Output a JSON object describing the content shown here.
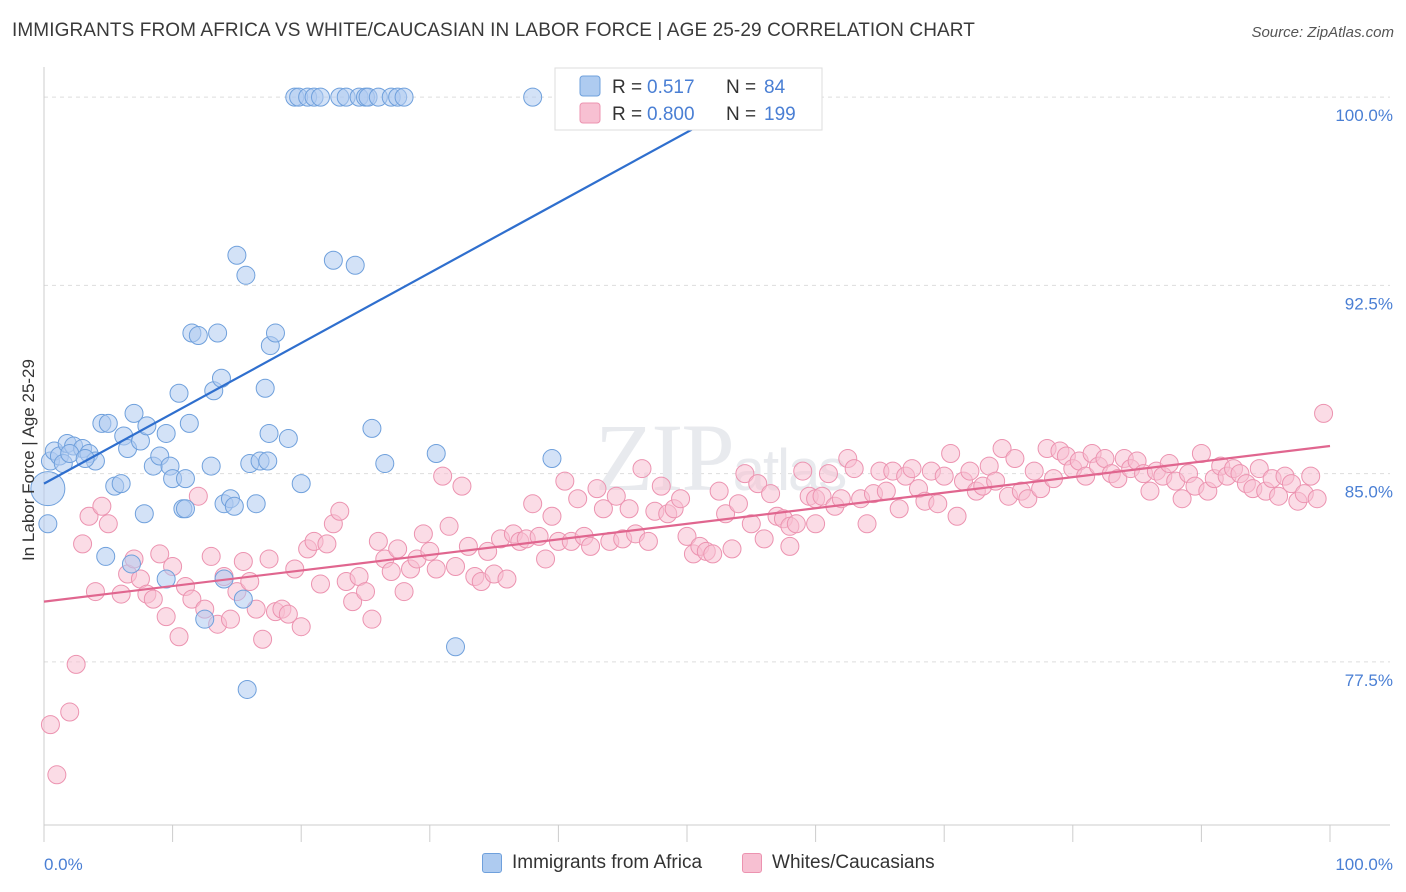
{
  "title": "IMMIGRANTS FROM AFRICA VS WHITE/CAUCASIAN IN LABOR FORCE | AGE 25-29 CORRELATION CHART",
  "source": "Source: ZipAtlas.com",
  "watermark": "ZIPatlas",
  "colors": {
    "blue_fill": "#aecbf0",
    "blue_stroke": "#6fa0dc",
    "blue_line": "#2f6fce",
    "pink_fill": "#f7c0d2",
    "pink_stroke": "#ec93b0",
    "pink_line": "#e0668f",
    "axis_text": "#4a7fd4",
    "grid": "#dddddd"
  },
  "legend_box": {
    "rows": [
      {
        "r_label": "R =",
        "r_value": "0.517",
        "n_label": "N =",
        "n_value": "84"
      },
      {
        "r_label": "R =",
        "r_value": "0.800",
        "n_label": "N =",
        "n_value": "199"
      }
    ]
  },
  "legend_bottom": [
    "Immigrants from Africa",
    "Whites/Caucasians"
  ],
  "chart_data": {
    "type": "scatter",
    "title": "IMMIGRANTS FROM AFRICA VS WHITE/CAUCASIAN IN LABOR FORCE | AGE 25-29 CORRELATION CHART",
    "xlabel": "",
    "ylabel": "In Labor Force | Age 25-29",
    "xlim": [
      0,
      100
    ],
    "ylim": [
      71,
      101
    ],
    "x_tick_labels": [
      "0.0%",
      "100.0%"
    ],
    "y_ticks": [
      77.5,
      85.0,
      92.5,
      100.0
    ],
    "y_tick_labels": [
      "77.5%",
      "85.0%",
      "92.5%",
      "100.0%"
    ],
    "grid": true,
    "legend_position": "top-center",
    "series": [
      {
        "name": "Immigrants from Africa",
        "R": 0.517,
        "N": 84,
        "trend": {
          "x": [
            0,
            55
          ],
          "y": [
            84.6,
            100.0
          ]
        },
        "points": [
          [
            0.3,
            84.4
          ],
          [
            0.3,
            83.0
          ],
          [
            0.5,
            85.5
          ],
          [
            0.8,
            85.9
          ],
          [
            1.2,
            85.7
          ],
          [
            1.5,
            85.4
          ],
          [
            1.8,
            86.2
          ],
          [
            2.3,
            86.1
          ],
          [
            3.0,
            86.0
          ],
          [
            3.5,
            85.8
          ],
          [
            4.0,
            85.5
          ],
          [
            4.5,
            87.0
          ],
          [
            5.0,
            87.0
          ],
          [
            5.5,
            84.5
          ],
          [
            6.0,
            84.6
          ],
          [
            6.2,
            86.5
          ],
          [
            6.5,
            86.0
          ],
          [
            7.0,
            87.4
          ],
          [
            7.5,
            86.3
          ],
          [
            7.8,
            83.4
          ],
          [
            8.0,
            86.9
          ],
          [
            8.5,
            85.3
          ],
          [
            9.0,
            85.7
          ],
          [
            9.5,
            86.6
          ],
          [
            9.8,
            85.3
          ],
          [
            10.0,
            84.8
          ],
          [
            10.5,
            88.2
          ],
          [
            10.8,
            83.6
          ],
          [
            11.0,
            84.8
          ],
          [
            11.3,
            87.0
          ],
          [
            11.5,
            90.6
          ],
          [
            12.0,
            90.5
          ],
          [
            12.5,
            79.2
          ],
          [
            13.0,
            85.3
          ],
          [
            13.2,
            88.3
          ],
          [
            13.5,
            90.6
          ],
          [
            13.8,
            88.8
          ],
          [
            14.0,
            83.8
          ],
          [
            14.5,
            84.0
          ],
          [
            14.8,
            83.7
          ],
          [
            15.0,
            93.7
          ],
          [
            15.5,
            80.0
          ],
          [
            15.7,
            92.9
          ],
          [
            15.8,
            76.4
          ],
          [
            16.0,
            85.4
          ],
          [
            16.5,
            83.8
          ],
          [
            16.8,
            85.5
          ],
          [
            17.2,
            88.4
          ],
          [
            17.4,
            85.5
          ],
          [
            17.5,
            86.6
          ],
          [
            17.6,
            90.1
          ],
          [
            18.0,
            90.6
          ],
          [
            19.0,
            86.4
          ],
          [
            19.5,
            100.0
          ],
          [
            19.8,
            100.0
          ],
          [
            20.0,
            84.6
          ],
          [
            20.5,
            100.0
          ],
          [
            21.0,
            100.0
          ],
          [
            21.5,
            100.0
          ],
          [
            22.5,
            93.5
          ],
          [
            23.0,
            100.0
          ],
          [
            23.5,
            100.0
          ],
          [
            24.2,
            93.3
          ],
          [
            24.5,
            100.0
          ],
          [
            25.0,
            100.0
          ],
          [
            25.2,
            100.0
          ],
          [
            25.5,
            86.8
          ],
          [
            26.0,
            100.0
          ],
          [
            26.5,
            85.4
          ],
          [
            27.0,
            100.0
          ],
          [
            27.5,
            100.0
          ],
          [
            28.0,
            100.0
          ],
          [
            30.5,
            85.8
          ],
          [
            32.0,
            78.1
          ],
          [
            38.0,
            100.0
          ],
          [
            39.5,
            85.6
          ],
          [
            41.0,
            100.0
          ],
          [
            4.8,
            81.7
          ],
          [
            6.8,
            81.4
          ],
          [
            9.5,
            80.8
          ],
          [
            11.0,
            83.6
          ],
          [
            14.0,
            80.8
          ],
          [
            2.0,
            85.8
          ],
          [
            3.2,
            85.6
          ]
        ],
        "sizes": {
          "0.3,84.4": 34,
          "0.3,83.0": 40
        }
      },
      {
        "name": "Whites/Caucasians",
        "R": 0.8,
        "N": 199,
        "trend": {
          "x": [
            0,
            100
          ],
          "y": [
            79.9,
            86.1
          ]
        },
        "points": [
          [
            0.5,
            75.0
          ],
          [
            1.0,
            73.0
          ],
          [
            2.0,
            75.5
          ],
          [
            2.5,
            77.4
          ],
          [
            3.0,
            82.2
          ],
          [
            3.5,
            83.3
          ],
          [
            4.0,
            80.3
          ],
          [
            4.5,
            83.7
          ],
          [
            5.0,
            83.0
          ],
          [
            6.0,
            80.2
          ],
          [
            6.5,
            81.0
          ],
          [
            7.0,
            81.6
          ],
          [
            7.5,
            80.8
          ],
          [
            8.0,
            80.2
          ],
          [
            8.5,
            80.0
          ],
          [
            9.0,
            81.8
          ],
          [
            9.5,
            79.3
          ],
          [
            10.0,
            81.3
          ],
          [
            10.5,
            78.5
          ],
          [
            11.0,
            80.5
          ],
          [
            11.5,
            80.0
          ],
          [
            12.0,
            84.1
          ],
          [
            12.5,
            79.6
          ],
          [
            13.0,
            81.7
          ],
          [
            13.5,
            79.0
          ],
          [
            14.0,
            80.9
          ],
          [
            14.5,
            79.2
          ],
          [
            15.0,
            80.3
          ],
          [
            15.5,
            81.5
          ],
          [
            16.0,
            80.7
          ],
          [
            16.5,
            79.6
          ],
          [
            17.0,
            78.4
          ],
          [
            17.5,
            81.6
          ],
          [
            18.0,
            79.5
          ],
          [
            18.5,
            79.6
          ],
          [
            19.0,
            79.4
          ],
          [
            19.5,
            81.2
          ],
          [
            20.0,
            78.9
          ],
          [
            20.5,
            82.0
          ],
          [
            21.0,
            82.3
          ],
          [
            21.5,
            80.6
          ],
          [
            22.0,
            82.2
          ],
          [
            22.5,
            83.0
          ],
          [
            23.0,
            83.5
          ],
          [
            23.5,
            80.7
          ],
          [
            24.0,
            79.9
          ],
          [
            24.5,
            80.9
          ],
          [
            25.0,
            80.3
          ],
          [
            25.5,
            79.2
          ],
          [
            26.0,
            82.3
          ],
          [
            26.5,
            81.6
          ],
          [
            27.0,
            81.1
          ],
          [
            27.5,
            82.0
          ],
          [
            28.0,
            80.3
          ],
          [
            28.5,
            81.2
          ],
          [
            29.0,
            81.6
          ],
          [
            29.5,
            82.6
          ],
          [
            30.0,
            81.9
          ],
          [
            30.5,
            81.2
          ],
          [
            31.0,
            84.9
          ],
          [
            31.5,
            82.9
          ],
          [
            32.0,
            81.3
          ],
          [
            32.5,
            84.5
          ],
          [
            33.0,
            82.1
          ],
          [
            33.5,
            80.9
          ],
          [
            34.0,
            80.7
          ],
          [
            34.5,
            81.9
          ],
          [
            35.0,
            81.0
          ],
          [
            35.5,
            82.4
          ],
          [
            36.0,
            80.8
          ],
          [
            36.5,
            82.6
          ],
          [
            37.0,
            82.3
          ],
          [
            37.5,
            82.4
          ],
          [
            38.0,
            83.8
          ],
          [
            38.5,
            82.5
          ],
          [
            39.0,
            81.6
          ],
          [
            39.5,
            83.3
          ],
          [
            40.0,
            82.3
          ],
          [
            40.5,
            84.7
          ],
          [
            41.0,
            82.3
          ],
          [
            41.5,
            84.0
          ],
          [
            42.0,
            82.5
          ],
          [
            42.5,
            82.1
          ],
          [
            43.0,
            84.4
          ],
          [
            43.5,
            83.6
          ],
          [
            44.0,
            82.3
          ],
          [
            44.5,
            84.1
          ],
          [
            45.0,
            82.4
          ],
          [
            45.5,
            83.6
          ],
          [
            46.0,
            82.6
          ],
          [
            46.5,
            85.2
          ],
          [
            47.0,
            82.3
          ],
          [
            47.5,
            83.5
          ],
          [
            48.0,
            84.5
          ],
          [
            48.5,
            83.4
          ],
          [
            49.0,
            83.6
          ],
          [
            49.5,
            84.0
          ],
          [
            50.0,
            82.5
          ],
          [
            50.5,
            81.8
          ],
          [
            51.0,
            82.1
          ],
          [
            51.5,
            81.9
          ],
          [
            52.0,
            81.8
          ],
          [
            52.5,
            84.3
          ],
          [
            53.0,
            83.4
          ],
          [
            53.5,
            82.0
          ],
          [
            54.0,
            83.8
          ],
          [
            54.5,
            85.0
          ],
          [
            55.0,
            83.0
          ],
          [
            55.5,
            84.6
          ],
          [
            56.0,
            82.4
          ],
          [
            56.5,
            84.2
          ],
          [
            57.0,
            83.3
          ],
          [
            57.5,
            83.2
          ],
          [
            58.0,
            82.9
          ],
          [
            58.5,
            83.0
          ],
          [
            59.0,
            85.1
          ],
          [
            59.5,
            84.1
          ],
          [
            60.0,
            84.0
          ],
          [
            60.5,
            84.1
          ],
          [
            61.0,
            85.0
          ],
          [
            61.5,
            83.7
          ],
          [
            62.0,
            84.0
          ],
          [
            62.5,
            85.6
          ],
          [
            63.0,
            85.2
          ],
          [
            63.5,
            84.0
          ],
          [
            64.0,
            83.0
          ],
          [
            64.5,
            84.2
          ],
          [
            65.0,
            85.1
          ],
          [
            65.5,
            84.3
          ],
          [
            66.0,
            85.1
          ],
          [
            66.5,
            83.6
          ],
          [
            67.0,
            84.9
          ],
          [
            67.5,
            85.2
          ],
          [
            68.0,
            84.4
          ],
          [
            68.5,
            83.9
          ],
          [
            69.0,
            85.1
          ],
          [
            69.5,
            83.8
          ],
          [
            70.0,
            84.9
          ],
          [
            70.5,
            85.8
          ],
          [
            71.0,
            83.3
          ],
          [
            71.5,
            84.7
          ],
          [
            72.0,
            85.1
          ],
          [
            72.5,
            84.3
          ],
          [
            73.0,
            84.5
          ],
          [
            73.5,
            85.3
          ],
          [
            74.0,
            84.7
          ],
          [
            74.5,
            86.0
          ],
          [
            75.0,
            84.1
          ],
          [
            75.5,
            85.6
          ],
          [
            76.0,
            84.3
          ],
          [
            76.5,
            84.0
          ],
          [
            77.0,
            85.1
          ],
          [
            77.5,
            84.4
          ],
          [
            78.0,
            86.0
          ],
          [
            78.5,
            84.8
          ],
          [
            79.0,
            85.9
          ],
          [
            79.5,
            85.7
          ],
          [
            80.0,
            85.2
          ],
          [
            80.5,
            85.5
          ],
          [
            81.0,
            84.9
          ],
          [
            81.5,
            85.8
          ],
          [
            82.0,
            85.3
          ],
          [
            82.5,
            85.6
          ],
          [
            83.0,
            85.0
          ],
          [
            83.5,
            84.8
          ],
          [
            84.0,
            85.6
          ],
          [
            84.5,
            85.2
          ],
          [
            85.0,
            85.5
          ],
          [
            85.5,
            85.0
          ],
          [
            86.0,
            84.3
          ],
          [
            86.5,
            85.1
          ],
          [
            87.0,
            84.9
          ],
          [
            87.5,
            85.4
          ],
          [
            88.0,
            84.7
          ],
          [
            88.5,
            84.0
          ],
          [
            89.0,
            85.0
          ],
          [
            89.5,
            84.5
          ],
          [
            90.0,
            85.8
          ],
          [
            90.5,
            84.3
          ],
          [
            91.0,
            84.8
          ],
          [
            91.5,
            85.3
          ],
          [
            92.0,
            84.9
          ],
          [
            92.5,
            85.2
          ],
          [
            93.0,
            85.0
          ],
          [
            93.5,
            84.6
          ],
          [
            94.0,
            84.4
          ],
          [
            94.5,
            85.2
          ],
          [
            95.0,
            84.3
          ],
          [
            95.5,
            84.8
          ],
          [
            96.0,
            84.1
          ],
          [
            96.5,
            84.9
          ],
          [
            97.0,
            84.6
          ],
          [
            97.5,
            83.9
          ],
          [
            98.0,
            84.2
          ],
          [
            98.5,
            84.9
          ],
          [
            99.0,
            84.0
          ],
          [
            99.5,
            87.4
          ],
          [
            58.0,
            82.1
          ],
          [
            60.0,
            83.0
          ]
        ]
      }
    ]
  }
}
